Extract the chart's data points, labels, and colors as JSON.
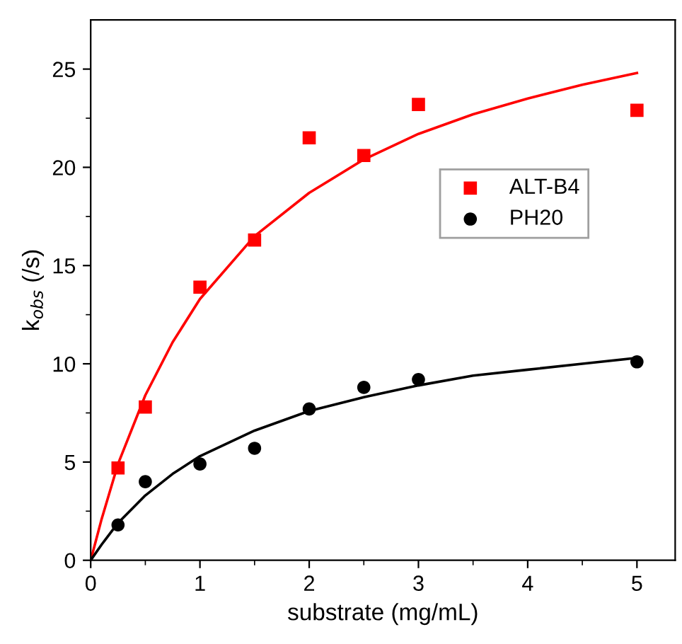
{
  "chart_data": {
    "type": "scatter",
    "xlabel": "substrate (mg/mL)",
    "ylabel": "k$_{obs}$ (/s)",
    "xlim": [
      0,
      5.35
    ],
    "ylim": [
      0,
      27.5
    ],
    "xticks": [
      0,
      1,
      2,
      3,
      4,
      5
    ],
    "yticks": [
      0,
      5,
      10,
      15,
      20,
      25
    ],
    "legend": "right",
    "grid": false,
    "series": [
      {
        "name": "ALT-B4",
        "marker": "square",
        "color": "#ff0000",
        "x": [
          0.25,
          0.5,
          1,
          1.5,
          2,
          2.5,
          3,
          5
        ],
        "values": [
          4.7,
          7.8,
          13.9,
          16.3,
          21.5,
          20.6,
          23.2,
          22.9
        ]
      },
      {
        "name": "PH20",
        "marker": "circle",
        "color": "#000000",
        "x": [
          0.25,
          0.5,
          1,
          1.5,
          2,
          2.5,
          3,
          5
        ],
        "values": [
          1.8,
          4.0,
          4.9,
          5.7,
          7.7,
          8.8,
          9.2,
          10.1
        ]
      },
      {
        "type": "line",
        "marker": "none",
        "line_style": "solid",
        "color": "#ff0000",
        "x": [
          0,
          0.1,
          0.25,
          0.5,
          0.75,
          1,
          1.5,
          2,
          2.5,
          3,
          3.5,
          4,
          4.5,
          5
        ],
        "values": [
          0,
          2.1,
          4.9,
          8.4,
          11.1,
          13.3,
          16.5,
          18.7,
          20.4,
          21.7,
          22.7,
          23.5,
          24.2,
          24.8
        ]
      },
      {
        "type": "line",
        "marker": "none",
        "line_style": "solid",
        "color": "#000000",
        "x": [
          0,
          0.1,
          0.25,
          0.5,
          0.75,
          1,
          1.5,
          2,
          2.5,
          3,
          3.5,
          4,
          4.5,
          5
        ],
        "values": [
          0,
          0.8,
          1.9,
          3.3,
          4.4,
          5.3,
          6.6,
          7.6,
          8.3,
          8.9,
          9.4,
          9.7,
          10.0,
          10.3
        ]
      }
    ]
  }
}
